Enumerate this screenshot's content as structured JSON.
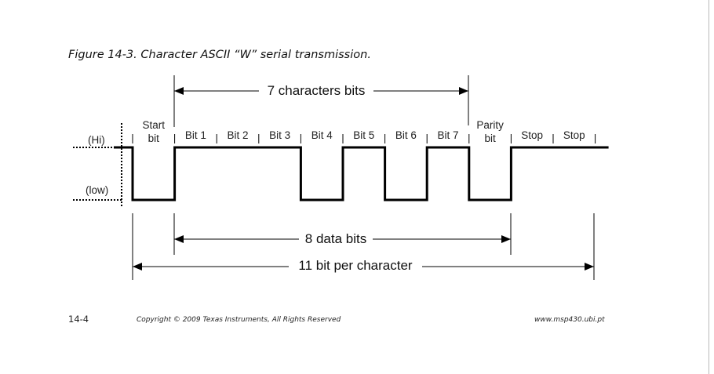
{
  "caption": "Figure 14-3. Character ASCII “W” serial transmission.",
  "levels": {
    "hi": "(Hi)",
    "low": "(low)"
  },
  "bits": [
    {
      "lines": [
        "Start",
        "bit"
      ],
      "level": "low"
    },
    {
      "lines": [
        "Bit 1"
      ],
      "level": "high"
    },
    {
      "lines": [
        "Bit 2"
      ],
      "level": "high"
    },
    {
      "lines": [
        "Bit 3"
      ],
      "level": "high"
    },
    {
      "lines": [
        "Bit 4"
      ],
      "level": "low"
    },
    {
      "lines": [
        "Bit 5"
      ],
      "level": "high"
    },
    {
      "lines": [
        "Bit 6"
      ],
      "level": "low"
    },
    {
      "lines": [
        "Bit 7"
      ],
      "level": "high"
    },
    {
      "lines": [
        "Parity",
        "bit"
      ],
      "level": "low"
    },
    {
      "lines": [
        "Stop"
      ],
      "level": "high"
    },
    {
      "lines": [
        "Stop"
      ],
      "level": "high"
    }
  ],
  "spans": {
    "char_bits": "7 characters bits",
    "data_bits": "8 data bits",
    "per_char": "11 bit per character"
  },
  "footer": {
    "page": "14-4",
    "copyright": "Copyright  © 2009 Texas Instruments, All Rights Reserved",
    "site": "www.msp430.ubi.pt"
  }
}
